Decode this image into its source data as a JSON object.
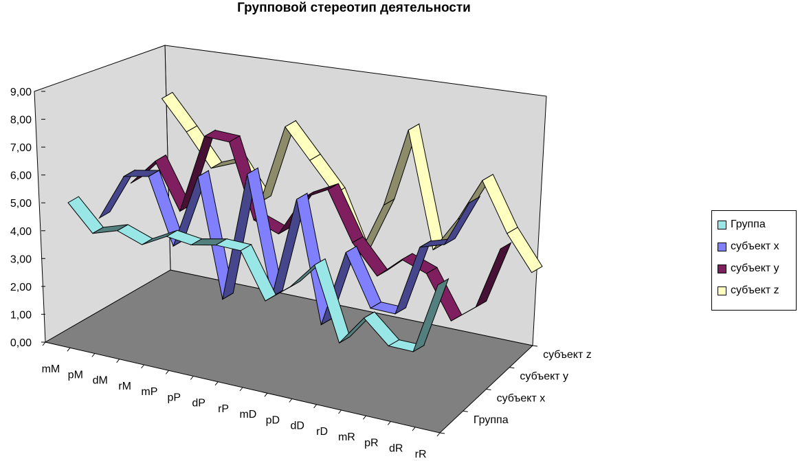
{
  "chart_data": {
    "type": "3d-line",
    "title": "Групповой стереотип деятельности",
    "categories": [
      "mM",
      "pM",
      "dM",
      "rM",
      "mP",
      "pP",
      "dP",
      "rP",
      "mD",
      "pD",
      "dD",
      "rD",
      "mR",
      "pR",
      "dR",
      "rR"
    ],
    "y_ticks": [
      "0,00",
      "1,00",
      "2,00",
      "3,00",
      "4,00",
      "5,00",
      "6,00",
      "7,00",
      "8,00",
      "9,00"
    ],
    "ylim": [
      0,
      9
    ],
    "series": [
      {
        "name": "Группа",
        "color": "#99e6e6",
        "values": [
          4.9,
          4.0,
          4.3,
          4.0,
          4.5,
          4.4,
          4.6,
          4.6,
          3.0,
          3.7,
          4.7,
          2.1,
          3.2,
          2.4,
          2.4,
          5.0
        ]
      },
      {
        "name": "субъект x",
        "color": "#8080ff",
        "values": [
          3.7,
          5.4,
          5.6,
          3.3,
          6.0,
          1.8,
          6.5,
          2.3,
          6.0,
          1.7,
          4.5,
          2.7,
          2.7,
          5.3,
          5.6,
          7.3
        ]
      },
      {
        "name": "субъект y",
        "color": "#7f1f5f",
        "values": [
          4.3,
          5.3,
          3.7,
          6.6,
          6.6,
          4.0,
          3.7,
          5.2,
          5.7,
          4.0,
          3.0,
          3.8,
          3.5,
          2.0,
          2.7,
          5.0
        ]
      },
      {
        "name": "субъект z",
        "color": "#ffffc0",
        "values": [
          6.7,
          5.7,
          4.6,
          5.0,
          3.8,
          6.7,
          5.7,
          4.7,
          2.7,
          4.7,
          7.6,
          3.5,
          4.8,
          6.4,
          4.7,
          3.5
        ]
      }
    ],
    "depth_labels": [
      "Группа",
      "субъект x",
      "субъект y",
      "субъект z"
    ],
    "legend_position": "right",
    "grid": false
  },
  "legend": {
    "items": [
      {
        "label": "Группа",
        "color": "#99e6e6"
      },
      {
        "label": "субъект x",
        "color": "#8080ff"
      },
      {
        "label": "субъект y",
        "color": "#7f1f5f"
      },
      {
        "label": "субъект z",
        "color": "#ffffc0"
      }
    ]
  }
}
